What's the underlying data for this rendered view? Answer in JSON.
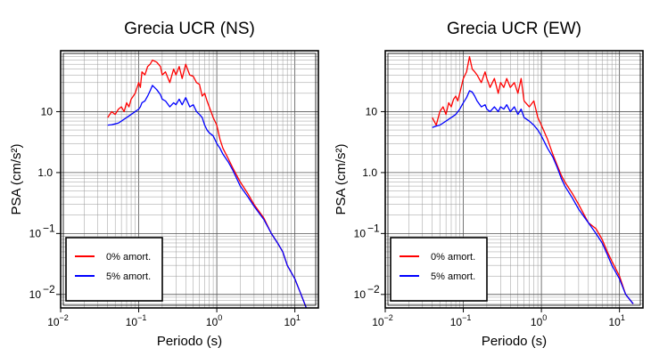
{
  "chart_data": [
    {
      "type": "line",
      "title": "Grecia UCR (NS)",
      "xlabel": "Periodo (s)",
      "ylabel": "PSA (cm/s²)",
      "xscale": "log",
      "yscale": "log",
      "xlim": [
        0.01,
        20
      ],
      "ylim": [
        0.006,
        100
      ],
      "grid": true,
      "legend_position": "bottom-left",
      "x_ticks": [
        {
          "value": 0.01,
          "mantissa": "10",
          "exp": "−2"
        },
        {
          "value": 0.1,
          "mantissa": "10",
          "exp": "−1"
        },
        {
          "value": 1,
          "mantissa": "10",
          "exp": "0"
        },
        {
          "value": 10,
          "mantissa": "10",
          "exp": "1"
        }
      ],
      "y_ticks": [
        {
          "value": 0.01,
          "mantissa": "10",
          "exp": "−2"
        },
        {
          "value": 0.1,
          "mantissa": "10",
          "exp": "−1"
        },
        {
          "value": 1,
          "label": "1.0"
        },
        {
          "value": 10,
          "label": "10"
        }
      ],
      "series": [
        {
          "name": "0% amort.",
          "color": "#ff0000",
          "x": [
            0.04,
            0.045,
            0.05,
            0.055,
            0.06,
            0.065,
            0.07,
            0.075,
            0.08,
            0.09,
            0.1,
            0.105,
            0.11,
            0.12,
            0.13,
            0.14,
            0.15,
            0.17,
            0.19,
            0.2,
            0.22,
            0.25,
            0.28,
            0.3,
            0.33,
            0.36,
            0.4,
            0.45,
            0.5,
            0.55,
            0.6,
            0.65,
            0.7,
            0.75,
            0.8,
            0.9,
            1.0,
            1.1,
            1.2,
            1.4,
            1.6,
            1.8,
            2.0,
            2.5,
            3.0,
            4.0,
            5.0,
            6.0,
            7.0,
            8.0,
            10.0,
            12.0,
            14.0
          ],
          "y": [
            8,
            10,
            9,
            11,
            12,
            10,
            14,
            12,
            16,
            20,
            30,
            25,
            45,
            40,
            55,
            60,
            70,
            65,
            55,
            40,
            45,
            30,
            50,
            40,
            55,
            35,
            60,
            40,
            38,
            30,
            28,
            18,
            20,
            15,
            12,
            8,
            6,
            3.5,
            2.5,
            1.7,
            1.2,
            0.9,
            0.7,
            0.45,
            0.3,
            0.18,
            0.1,
            0.07,
            0.05,
            0.03,
            0.018,
            0.01,
            0.006
          ]
        },
        {
          "name": "5% amort.",
          "color": "#0000ff",
          "x": [
            0.04,
            0.045,
            0.05,
            0.055,
            0.06,
            0.065,
            0.07,
            0.075,
            0.08,
            0.09,
            0.1,
            0.105,
            0.11,
            0.12,
            0.13,
            0.14,
            0.15,
            0.17,
            0.19,
            0.2,
            0.22,
            0.25,
            0.28,
            0.3,
            0.33,
            0.36,
            0.4,
            0.45,
            0.5,
            0.55,
            0.6,
            0.65,
            0.7,
            0.75,
            0.8,
            0.9,
            1.0,
            1.1,
            1.2,
            1.4,
            1.6,
            1.8,
            2.0,
            2.5,
            3.0,
            4.0,
            5.0,
            6.0,
            7.0,
            8.0,
            10.0,
            12.0,
            14.0
          ],
          "y": [
            6,
            6.1,
            6.3,
            6.5,
            7,
            7.5,
            8,
            8.5,
            9,
            10,
            11,
            12,
            14,
            15,
            18,
            22,
            27,
            23,
            19,
            16,
            15,
            12,
            14,
            13,
            16,
            13,
            17,
            12,
            13,
            10,
            9,
            8,
            6,
            5,
            4.5,
            4,
            3,
            2.5,
            2,
            1.5,
            1.1,
            0.8,
            0.6,
            0.4,
            0.28,
            0.17,
            0.1,
            0.07,
            0.05,
            0.03,
            0.018,
            0.01,
            0.006
          ]
        }
      ]
    },
    {
      "type": "line",
      "title": "Grecia UCR (EW)",
      "xlabel": "Periodo (s)",
      "ylabel": "PSA (cm/s²)",
      "xscale": "log",
      "yscale": "log",
      "xlim": [
        0.01,
        20
      ],
      "ylim": [
        0.006,
        100
      ],
      "grid": true,
      "legend_position": "bottom-left",
      "x_ticks": [
        {
          "value": 0.01,
          "mantissa": "10",
          "exp": "−2"
        },
        {
          "value": 0.1,
          "mantissa": "10",
          "exp": "−1"
        },
        {
          "value": 1,
          "mantissa": "10",
          "exp": "0"
        },
        {
          "value": 10,
          "mantissa": "10",
          "exp": "1"
        }
      ],
      "y_ticks": [
        {
          "value": 0.01,
          "mantissa": "10",
          "exp": "−2"
        },
        {
          "value": 0.1,
          "mantissa": "10",
          "exp": "−1"
        },
        {
          "value": 1,
          "label": "1.0"
        },
        {
          "value": 10,
          "label": "10"
        }
      ],
      "series": [
        {
          "name": "0% amort.",
          "color": "#ff0000",
          "x": [
            0.04,
            0.045,
            0.05,
            0.055,
            0.06,
            0.065,
            0.07,
            0.075,
            0.08,
            0.085,
            0.09,
            0.1,
            0.11,
            0.12,
            0.13,
            0.14,
            0.15,
            0.17,
            0.19,
            0.2,
            0.22,
            0.25,
            0.28,
            0.3,
            0.33,
            0.36,
            0.4,
            0.45,
            0.5,
            0.55,
            0.6,
            0.7,
            0.8,
            0.9,
            1.0,
            1.2,
            1.4,
            1.6,
            1.8,
            2.0,
            2.5,
            3.0,
            4.0,
            5.0,
            6.0,
            7.0,
            8.0,
            10.0,
            12.0,
            15.0
          ],
          "y": [
            8,
            6,
            10,
            12,
            9,
            14,
            12,
            16,
            18,
            15,
            20,
            35,
            45,
            80,
            50,
            45,
            40,
            30,
            45,
            35,
            25,
            35,
            20,
            30,
            25,
            35,
            25,
            30,
            20,
            35,
            15,
            12,
            15,
            8,
            6,
            3.5,
            2,
            1.3,
            0.9,
            0.7,
            0.45,
            0.3,
            0.15,
            0.12,
            0.08,
            0.05,
            0.035,
            0.02,
            0.01,
            0.007
          ]
        },
        {
          "name": "5% amort.",
          "color": "#0000ff",
          "x": [
            0.04,
            0.045,
            0.05,
            0.055,
            0.06,
            0.065,
            0.07,
            0.075,
            0.08,
            0.085,
            0.09,
            0.1,
            0.11,
            0.12,
            0.13,
            0.14,
            0.15,
            0.17,
            0.19,
            0.2,
            0.22,
            0.25,
            0.28,
            0.3,
            0.33,
            0.36,
            0.4,
            0.45,
            0.5,
            0.55,
            0.6,
            0.7,
            0.8,
            0.9,
            1.0,
            1.2,
            1.4,
            1.6,
            1.8,
            2.0,
            2.5,
            3.0,
            4.0,
            5.0,
            6.0,
            7.0,
            8.0,
            10.0,
            12.0,
            15.0
          ],
          "y": [
            5.5,
            5.8,
            6,
            6.5,
            7,
            7.5,
            8,
            8.5,
            9,
            10,
            11,
            14,
            17,
            22,
            21,
            18,
            15,
            12,
            13,
            11,
            10,
            12,
            10,
            12,
            11,
            13,
            10,
            12,
            9,
            11,
            8,
            7,
            6,
            5,
            4,
            2.5,
            1.8,
            1.2,
            0.8,
            0.6,
            0.38,
            0.25,
            0.15,
            0.1,
            0.07,
            0.045,
            0.03,
            0.018,
            0.01,
            0.007
          ]
        }
      ]
    }
  ]
}
